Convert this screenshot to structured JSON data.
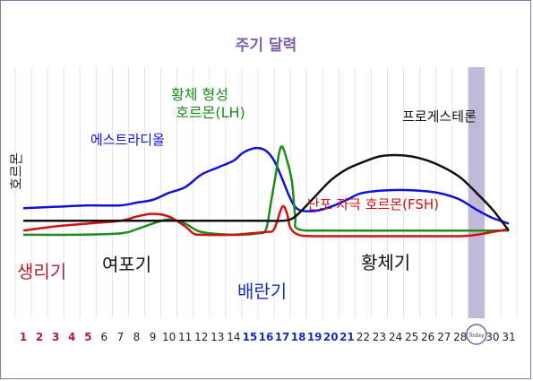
{
  "chart_data": {
    "type": "line",
    "title": "주기 달력",
    "ylabel": "호르몬",
    "x": [
      1,
      2,
      3,
      4,
      5,
      6,
      7,
      8,
      9,
      10,
      11,
      12,
      13,
      14,
      15,
      16,
      17,
      18,
      19,
      20,
      21,
      22,
      23,
      24,
      25,
      26,
      27,
      28,
      29,
      30,
      31
    ],
    "tick_labels": [
      "1",
      "2",
      "3",
      "4",
      "5",
      "6",
      "7",
      "8",
      "9",
      "10",
      "11",
      "12",
      "13",
      "14",
      "15",
      "16",
      "17",
      "18",
      "19",
      "20",
      "21",
      "22",
      "23",
      "24",
      "25",
      "26",
      "27",
      "28",
      "",
      "30",
      "31"
    ],
    "today_label": "Today",
    "today_day": 29,
    "ylim": [
      0,
      100
    ],
    "grid": true,
    "tick_colors": {
      "menstrual": "#b01e32",
      "fertile": "#1a2fb4",
      "default": "#222222"
    },
    "menstrual_days": [
      1,
      2,
      3,
      4,
      5
    ],
    "fertile_days": [
      15,
      16,
      17,
      18,
      19,
      20,
      21
    ],
    "phases": [
      {
        "label": "생리기",
        "color": "#b01e32"
      },
      {
        "label": "여포기",
        "color": "#111111"
      },
      {
        "label": "배란기",
        "color": "#1a2fb4"
      },
      {
        "label": "황체기",
        "color": "#111111"
      }
    ],
    "series": [
      {
        "name": "에스트라디올",
        "color": "#1010d8",
        "x": [
          1,
          3,
          5,
          7,
          8,
          9,
          10,
          11,
          12,
          13,
          14,
          14.5,
          15,
          15.5,
          16,
          16.5,
          17,
          17.5,
          18,
          19,
          20,
          21,
          22,
          24,
          26,
          27,
          28,
          29,
          30,
          31
        ],
        "values": [
          21,
          22,
          23,
          23,
          25,
          27,
          32,
          36,
          45,
          50,
          55,
          60,
          63,
          64,
          62,
          55,
          42,
          28,
          20,
          19,
          22,
          27,
          32,
          34,
          33,
          31,
          27,
          20,
          14,
          10
        ]
      },
      {
        "name": "황체 형성 호르몬(LH)",
        "color": "#1c8c1c",
        "x": [
          1,
          4,
          7,
          8,
          9,
          10,
          11,
          12,
          14,
          15.5,
          16,
          16.3,
          16.6,
          16.8,
          17,
          17.3,
          17.6,
          17.8,
          18,
          20,
          25,
          30,
          31
        ],
        "values": [
          2,
          2,
          3,
          6,
          10,
          13,
          10,
          4,
          2,
          3,
          6,
          25,
          45,
          60,
          65,
          55,
          40,
          15,
          6,
          5,
          5,
          5,
          5
        ]
      },
      {
        "name": "난포 자극 호르몬(FSH)",
        "color": "#d01212",
        "x": [
          1,
          3,
          5,
          7,
          8,
          9,
          10,
          11,
          11.5,
          12,
          14,
          15,
          16,
          16.5,
          17,
          17.3,
          17.5,
          18,
          19,
          22,
          25,
          28,
          29,
          30,
          31
        ],
        "values": [
          5,
          8,
          10,
          12,
          15,
          17,
          15,
          8,
          3,
          2,
          2,
          3,
          4,
          6,
          22,
          17,
          7,
          2,
          1,
          1,
          1,
          1,
          2,
          4,
          6
        ]
      },
      {
        "name": "프로게스테론",
        "color": "#111111",
        "x": [
          1,
          5,
          10,
          15,
          16,
          17,
          17.5,
          18,
          19,
          20,
          21,
          22,
          23,
          24,
          25,
          26,
          27,
          28,
          29,
          30,
          31
        ],
        "values": [
          12,
          12,
          12,
          12,
          12,
          12,
          13,
          17,
          29,
          41,
          49,
          54,
          58,
          59,
          58,
          55,
          50,
          43,
          32,
          20,
          5
        ]
      }
    ],
    "series_labels": [
      {
        "lines": [
          "황체 형성",
          "호르몬(LH)"
        ],
        "color": "#1c8c1c"
      },
      {
        "lines": [
          "에스트라디올"
        ],
        "color": "#1010d8"
      },
      {
        "lines": [
          "프로게스테론"
        ],
        "color": "#111111"
      },
      {
        "lines": [
          "난포 자극 호르몬(FSH)"
        ],
        "color": "#d01212"
      }
    ]
  }
}
